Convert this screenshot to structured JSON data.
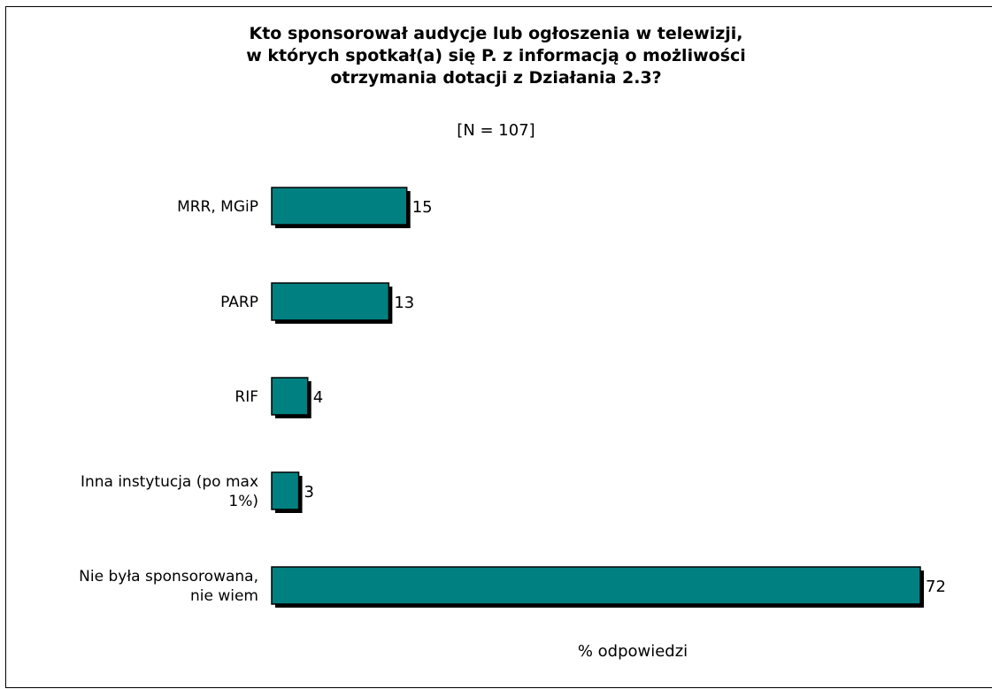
{
  "chart_data": {
    "type": "bar",
    "orientation": "horizontal",
    "title": [
      "Kto sponsorował audycje lub ogłoszenia w telewizji,",
      "w których spotkał(a) się P. z informacją o możliwości",
      "otrzymania dotacji z Działania 2.3?"
    ],
    "subtitle": "[N = 107]",
    "categories": [
      [
        "MRR, MGiP"
      ],
      [
        "PARP"
      ],
      [
        "RIF"
      ],
      [
        "Inna instytucja (po max",
        "1%)"
      ],
      [
        "Nie była sponsorowana,",
        "nie wiem"
      ]
    ],
    "values": [
      15,
      13,
      4,
      3,
      72
    ],
    "xlabel": "% odpowiedzi",
    "xlim": [
      0,
      72
    ],
    "bar_color": "#008080",
    "shadow_color": "#000000",
    "grid": false,
    "legend": "none"
  }
}
